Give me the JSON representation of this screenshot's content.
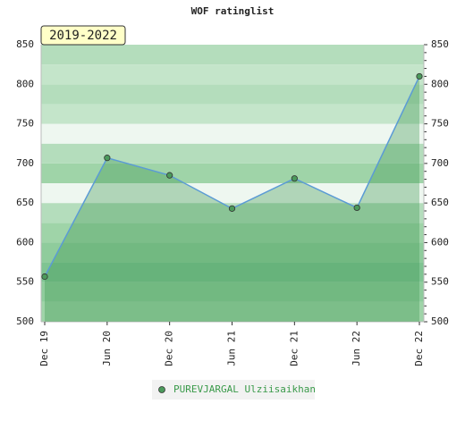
{
  "chart_data": {
    "type": "line",
    "title": "WOF ratinglist",
    "annotation": "2019-2022",
    "categories": [
      "Dec 19",
      "Jun 20",
      "Dec 20",
      "Jun 21",
      "Dec 21",
      "Jun 22",
      "Dec 22"
    ],
    "series": [
      {
        "name": "PUREVJARGAL Ulziisaikhan",
        "color": "#5b9bd5",
        "marker_color": "#4c9a5c",
        "values": [
          557,
          707,
          685,
          643,
          681,
          644,
          810
        ]
      }
    ],
    "ylim": [
      500,
      850
    ],
    "yticks": [
      500,
      550,
      600,
      650,
      700,
      750,
      800,
      850
    ],
    "grid": true
  }
}
